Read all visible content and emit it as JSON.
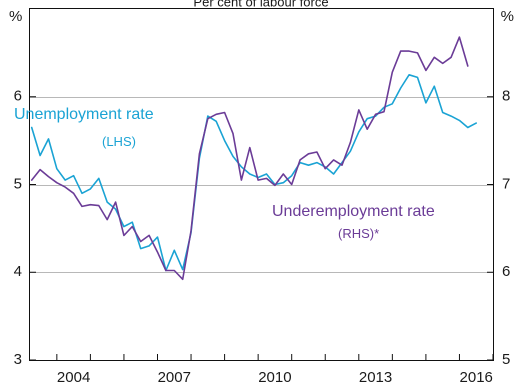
{
  "chart_data": {
    "type": "line",
    "subtitle": "Per cent of labour force",
    "left_axis": {
      "unit": "%",
      "ylim": [
        3,
        7
      ],
      "ticks": [
        3,
        4,
        5,
        6
      ]
    },
    "right_axis": {
      "unit": "%",
      "ylim": [
        5,
        9
      ],
      "ticks": [
        5,
        6,
        7,
        8
      ]
    },
    "x_ticks": [
      "2004",
      "2007",
      "2010",
      "2013",
      "2016"
    ],
    "x_tick_values": [
      2004,
      2007,
      2010,
      2013,
      2016
    ],
    "xlim": [
      2003.2,
      2017.0
    ],
    "grid": true,
    "series": [
      {
        "name": "Unemployment rate",
        "label_line1": "Unemployment rate",
        "label_line2": "(LHS)",
        "axis": "left",
        "color": "#1aa3d4",
        "points": [
          [
            2003.25,
            5.65
          ],
          [
            2003.5,
            5.33
          ],
          [
            2003.75,
            5.52
          ],
          [
            2004.0,
            5.18
          ],
          [
            2004.25,
            5.05
          ],
          [
            2004.5,
            5.1
          ],
          [
            2004.75,
            4.9
          ],
          [
            2005.0,
            4.95
          ],
          [
            2005.25,
            5.07
          ],
          [
            2005.5,
            4.8
          ],
          [
            2005.75,
            4.72
          ],
          [
            2006.0,
            4.52
          ],
          [
            2006.25,
            4.57
          ],
          [
            2006.5,
            4.27
          ],
          [
            2006.75,
            4.3
          ],
          [
            2007.0,
            4.4
          ],
          [
            2007.25,
            4.02
          ],
          [
            2007.5,
            4.25
          ],
          [
            2007.75,
            4.03
          ],
          [
            2008.0,
            4.45
          ],
          [
            2008.25,
            5.3
          ],
          [
            2008.5,
            5.78
          ],
          [
            2008.75,
            5.72
          ],
          [
            2009.0,
            5.5
          ],
          [
            2009.25,
            5.32
          ],
          [
            2009.5,
            5.2
          ],
          [
            2009.75,
            5.12
          ],
          [
            2010.0,
            5.08
          ],
          [
            2010.25,
            5.12
          ],
          [
            2010.5,
            5.0
          ],
          [
            2010.75,
            5.02
          ],
          [
            2011.0,
            5.1
          ],
          [
            2011.25,
            5.25
          ],
          [
            2011.5,
            5.22
          ],
          [
            2011.75,
            5.25
          ],
          [
            2012.0,
            5.2
          ],
          [
            2012.25,
            5.12
          ],
          [
            2012.5,
            5.25
          ],
          [
            2012.75,
            5.38
          ],
          [
            2013.0,
            5.6
          ],
          [
            2013.25,
            5.75
          ],
          [
            2013.5,
            5.78
          ],
          [
            2013.75,
            5.88
          ],
          [
            2014.0,
            5.92
          ],
          [
            2014.25,
            6.1
          ],
          [
            2014.5,
            6.25
          ],
          [
            2014.75,
            6.22
          ],
          [
            2015.0,
            5.93
          ],
          [
            2015.25,
            6.12
          ],
          [
            2015.5,
            5.82
          ],
          [
            2015.75,
            5.78
          ],
          [
            2016.0,
            5.73
          ],
          [
            2016.25,
            5.65
          ],
          [
            2016.5,
            5.7
          ]
        ]
      },
      {
        "name": "Underemployment rate",
        "label_line1": "Underemployment rate",
        "label_line2": "(RHS)*",
        "axis": "right",
        "color": "#6b3c97",
        "points": [
          [
            2003.25,
            7.05
          ],
          [
            2003.5,
            7.17
          ],
          [
            2003.75,
            7.09
          ],
          [
            2004.0,
            7.02
          ],
          [
            2004.25,
            6.97
          ],
          [
            2004.5,
            6.9
          ],
          [
            2004.75,
            6.75
          ],
          [
            2005.0,
            6.77
          ],
          [
            2005.25,
            6.76
          ],
          [
            2005.5,
            6.6
          ],
          [
            2005.75,
            6.8
          ],
          [
            2006.0,
            6.42
          ],
          [
            2006.25,
            6.52
          ],
          [
            2006.5,
            6.35
          ],
          [
            2006.75,
            6.42
          ],
          [
            2007.0,
            6.23
          ],
          [
            2007.25,
            6.02
          ],
          [
            2007.5,
            6.02
          ],
          [
            2007.75,
            5.92
          ],
          [
            2008.0,
            6.47
          ],
          [
            2008.25,
            7.35
          ],
          [
            2008.5,
            7.75
          ],
          [
            2008.75,
            7.8
          ],
          [
            2009.0,
            7.82
          ],
          [
            2009.25,
            7.58
          ],
          [
            2009.5,
            7.05
          ],
          [
            2009.75,
            7.42
          ],
          [
            2010.0,
            7.05
          ],
          [
            2010.25,
            7.07
          ],
          [
            2010.5,
            6.99
          ],
          [
            2010.75,
            7.12
          ],
          [
            2011.0,
            7.0
          ],
          [
            2011.25,
            7.28
          ],
          [
            2011.5,
            7.35
          ],
          [
            2011.75,
            7.37
          ],
          [
            2012.0,
            7.18
          ],
          [
            2012.25,
            7.28
          ],
          [
            2012.5,
            7.22
          ],
          [
            2012.75,
            7.48
          ],
          [
            2013.0,
            7.85
          ],
          [
            2013.25,
            7.63
          ],
          [
            2013.5,
            7.8
          ],
          [
            2013.75,
            7.83
          ],
          [
            2014.0,
            8.28
          ],
          [
            2014.25,
            8.52
          ],
          [
            2014.5,
            8.52
          ],
          [
            2014.75,
            8.5
          ],
          [
            2015.0,
            8.3
          ],
          [
            2015.25,
            8.45
          ],
          [
            2015.5,
            8.38
          ],
          [
            2015.75,
            8.45
          ],
          [
            2016.0,
            8.68
          ],
          [
            2016.25,
            8.35
          ]
        ]
      }
    ]
  }
}
